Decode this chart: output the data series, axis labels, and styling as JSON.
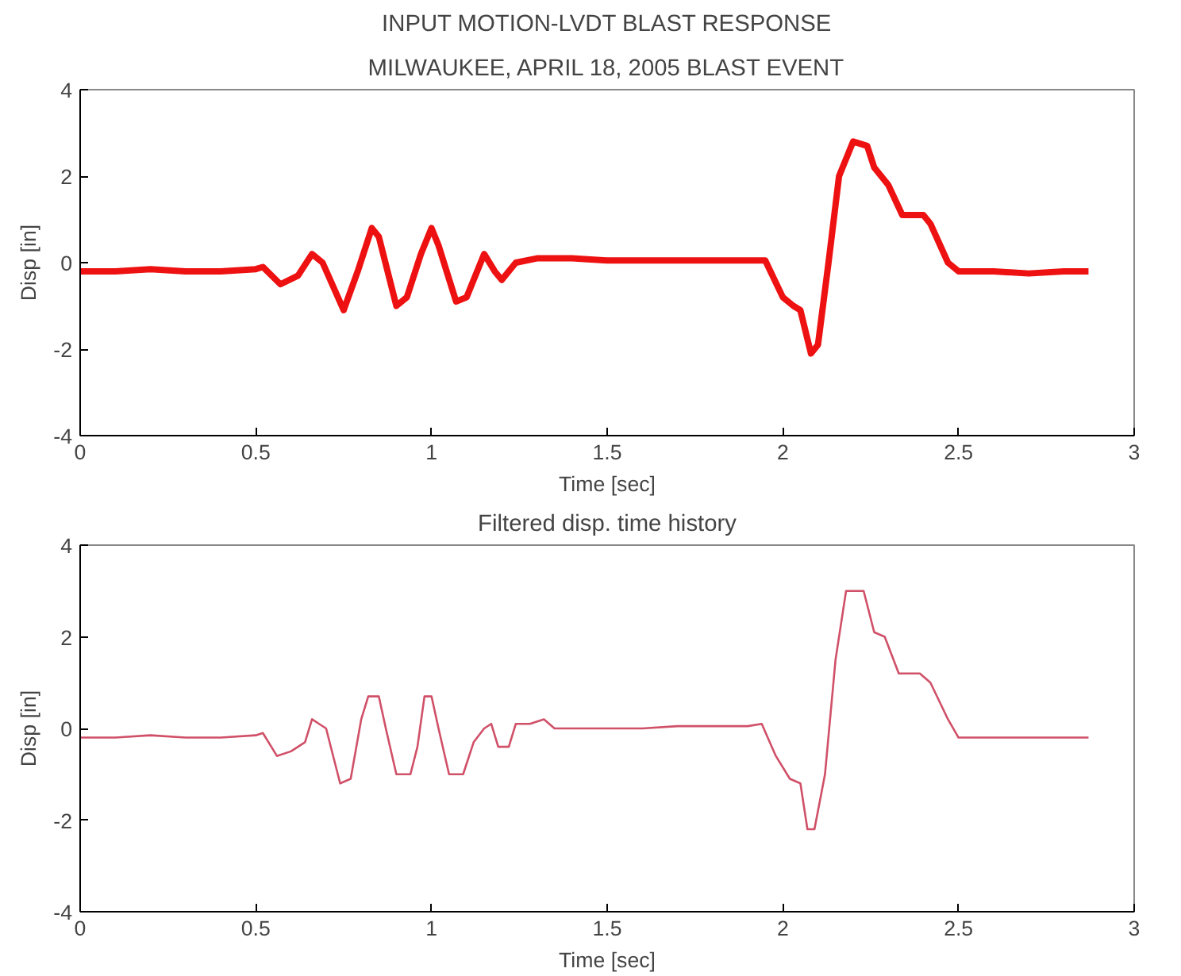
{
  "chart_data": [
    {
      "type": "line",
      "title": "INPUT MOTION-LVDT BLAST RESPONSE",
      "subtitle": "MILWAUKEE, APRIL 18, 2005 BLAST EVENT",
      "xlabel": "Time [sec]",
      "ylabel": "Disp [in]",
      "x": [
        0,
        0.1,
        0.2,
        0.3,
        0.4,
        0.5,
        0.52,
        0.57,
        0.62,
        0.66,
        0.69,
        0.75,
        0.79,
        0.83,
        0.85,
        0.9,
        0.93,
        0.97,
        1.0,
        1.02,
        1.07,
        1.1,
        1.15,
        1.18,
        1.2,
        1.24,
        1.3,
        1.4,
        1.5,
        1.6,
        1.7,
        1.8,
        1.9,
        1.95,
        2.0,
        2.03,
        2.05,
        2.08,
        2.1,
        2.13,
        2.16,
        2.2,
        2.24,
        2.26,
        2.3,
        2.34,
        2.4,
        2.42,
        2.47,
        2.5,
        2.6,
        2.7,
        2.8,
        2.87
      ],
      "series": [
        {
          "color": "#ee1111",
          "values": [
            -0.2,
            -0.2,
            -0.15,
            -0.2,
            -0.2,
            -0.15,
            -0.1,
            -0.5,
            -0.3,
            0.2,
            0.0,
            -1.1,
            -0.2,
            0.8,
            0.6,
            -1.0,
            -0.8,
            0.2,
            0.8,
            0.4,
            -0.9,
            -0.8,
            0.2,
            -0.2,
            -0.4,
            0.0,
            0.1,
            0.1,
            0.05,
            0.05,
            0.05,
            0.05,
            0.05,
            0.05,
            -0.8,
            -1.0,
            -1.1,
            -2.1,
            -1.9,
            0.0,
            2.0,
            2.8,
            2.7,
            2.2,
            1.8,
            1.1,
            1.1,
            0.9,
            0.0,
            -0.2,
            -0.2,
            -0.25,
            -0.2,
            -0.2
          ]
        }
      ],
      "xlim": [
        0,
        3
      ],
      "ylim": [
        -4,
        4
      ],
      "xticks": [
        0,
        0.5,
        1,
        1.5,
        2,
        2.5,
        3
      ],
      "yticks": [
        -4,
        -2,
        0,
        2,
        4
      ],
      "grid": false,
      "line_style": "solid"
    },
    {
      "type": "line",
      "title": "Filtered disp. time history",
      "xlabel": "Time [sec]",
      "ylabel": "Disp [in]",
      "x": [
        0,
        0.1,
        0.2,
        0.3,
        0.4,
        0.5,
        0.52,
        0.56,
        0.6,
        0.64,
        0.66,
        0.68,
        0.7,
        0.74,
        0.77,
        0.8,
        0.82,
        0.85,
        0.87,
        0.9,
        0.94,
        0.96,
        0.98,
        1.0,
        1.02,
        1.05,
        1.09,
        1.12,
        1.15,
        1.17,
        1.19,
        1.22,
        1.24,
        1.28,
        1.32,
        1.35,
        1.5,
        1.6,
        1.7,
        1.8,
        1.9,
        1.94,
        1.98,
        2.02,
        2.05,
        2.07,
        2.09,
        2.12,
        2.15,
        2.18,
        2.23,
        2.26,
        2.29,
        2.33,
        2.39,
        2.42,
        2.47,
        2.5,
        2.6,
        2.7,
        2.8,
        2.87
      ],
      "series": [
        {
          "color": "#d05068",
          "values": [
            -0.2,
            -0.2,
            -0.15,
            -0.2,
            -0.2,
            -0.15,
            -0.1,
            -0.6,
            -0.5,
            -0.3,
            0.2,
            0.1,
            0.0,
            -1.2,
            -1.1,
            0.2,
            0.7,
            0.7,
            0.0,
            -1.0,
            -1.0,
            -0.4,
            0.7,
            0.7,
            0.0,
            -1.0,
            -1.0,
            -0.3,
            0.0,
            0.1,
            -0.4,
            -0.4,
            0.1,
            0.1,
            0.2,
            0.0,
            0.0,
            0.0,
            0.05,
            0.05,
            0.05,
            0.1,
            -0.6,
            -1.1,
            -1.2,
            -2.2,
            -2.2,
            -1.0,
            1.5,
            3.0,
            3.0,
            2.1,
            2.0,
            1.2,
            1.2,
            1.0,
            0.2,
            -0.2,
            -0.2,
            -0.2,
            -0.2,
            -0.2
          ]
        }
      ],
      "xlim": [
        0,
        3
      ],
      "ylim": [
        -4,
        4
      ],
      "xticks": [
        0,
        0.5,
        1,
        1.5,
        2,
        2.5,
        3
      ],
      "yticks": [
        -4,
        -2,
        0,
        2,
        4
      ],
      "grid": false,
      "line_style": "solid"
    }
  ]
}
